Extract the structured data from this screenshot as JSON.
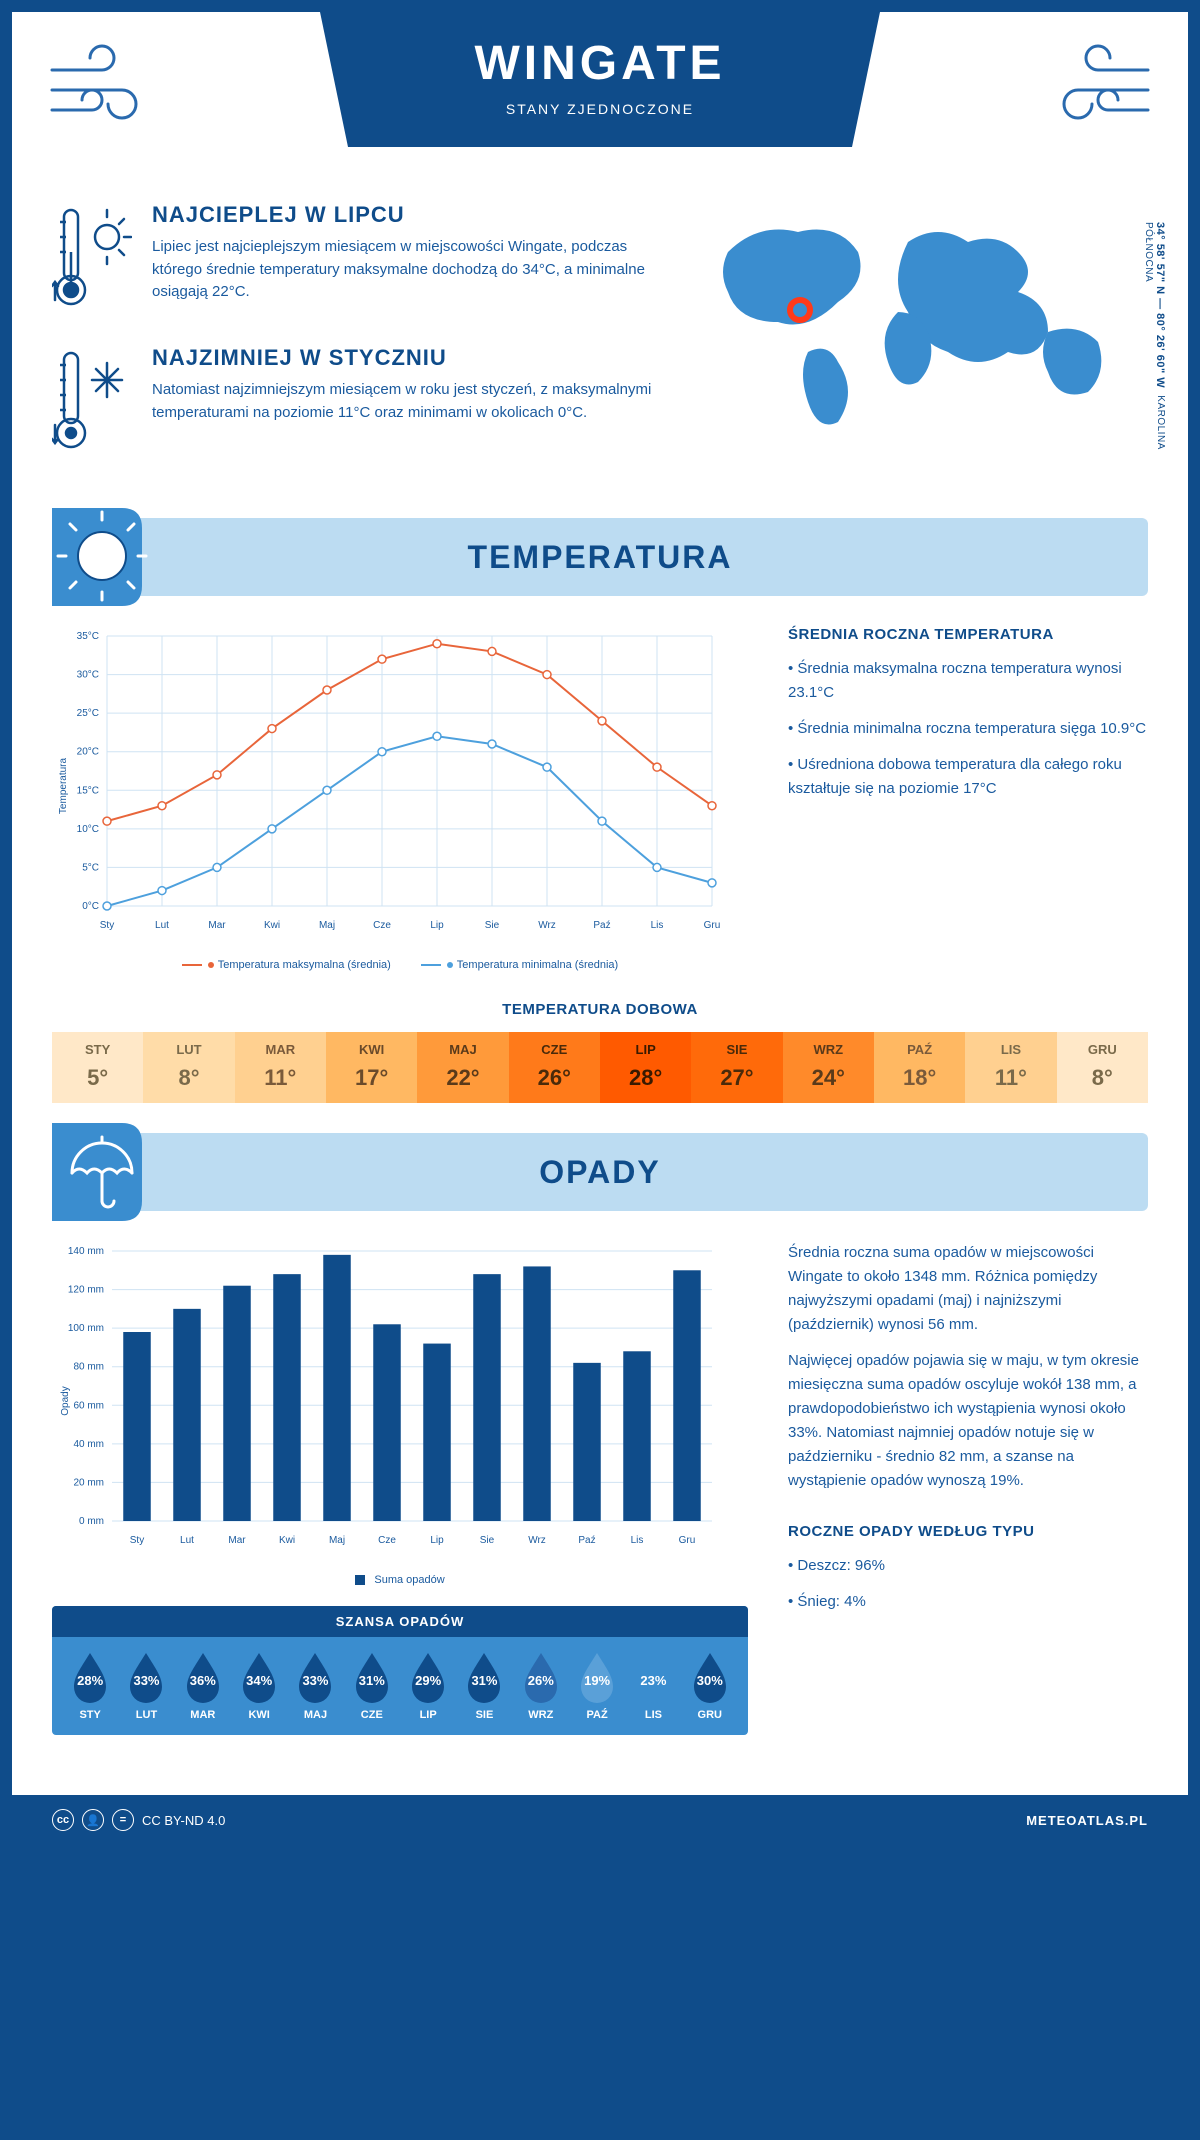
{
  "header": {
    "title": "WINGATE",
    "subtitle": "STANY ZJEDNOCZONE"
  },
  "coords": {
    "line1": "34° 58' 57\" N — 80° 26' 60\" W",
    "line2": "KAROLINA PÓŁNOCNA"
  },
  "facts": {
    "hot": {
      "title": "NAJCIEPLEJ W LIPCU",
      "text": "Lipiec jest najcieplejszym miesiącem w miejscowości Wingate, podczas którego średnie temperatury maksymalne dochodzą do 34°C, a minimalne osiągają 22°C."
    },
    "cold": {
      "title": "NAJZIMNIEJ W STYCZNIU",
      "text": "Natomiast najzimniejszym miesiącem w roku jest styczeń, z maksymalnymi temperaturami na poziomie 11°C oraz minimami w okolicach 0°C."
    }
  },
  "months": [
    "Sty",
    "Lut",
    "Mar",
    "Kwi",
    "Maj",
    "Cze",
    "Lip",
    "Sie",
    "Wrz",
    "Paź",
    "Lis",
    "Gru"
  ],
  "months_upper": [
    "STY",
    "LUT",
    "MAR",
    "KWI",
    "MAJ",
    "CZE",
    "LIP",
    "SIE",
    "WRZ",
    "PAŹ",
    "LIS",
    "GRU"
  ],
  "temp_section": {
    "title": "TEMPERATURA",
    "chart": {
      "type": "line",
      "ylabel": "Temperatura",
      "ylim": [
        0,
        35
      ],
      "yticks": [
        "0°C",
        "5°C",
        "10°C",
        "15°C",
        "20°C",
        "25°C",
        "30°C",
        "35°C"
      ],
      "series": {
        "max": {
          "label": "Temperatura maksymalna (średnia)",
          "color": "#e8653a",
          "values": [
            11,
            13,
            17,
            23,
            28,
            32,
            34,
            33,
            30,
            24,
            18,
            13
          ]
        },
        "min": {
          "label": "Temperatura minimalna (średnia)",
          "color": "#4da0dd",
          "values": [
            0,
            2,
            5,
            10,
            15,
            20,
            22,
            21,
            18,
            11,
            5,
            3
          ]
        }
      },
      "grid_color": "#cfe3f3",
      "background": "#ffffff",
      "line_width": 2,
      "marker": "circle",
      "marker_size": 4
    },
    "annual": {
      "title": "ŚREDNIA ROCZNA TEMPERATURA",
      "b1": "• Średnia maksymalna roczna temperatura wynosi 23.1°C",
      "b2": "• Średnia minimalna roczna temperatura sięga 10.9°C",
      "b3": "• Uśredniona dobowa temperatura dla całego roku kształtuje się na poziomie 17°C"
    },
    "daily": {
      "title": "TEMPERATURA DOBOWA",
      "values": [
        "5°",
        "8°",
        "11°",
        "17°",
        "22°",
        "26°",
        "28°",
        "27°",
        "24°",
        "18°",
        "11°",
        "8°"
      ],
      "bg_colors": [
        "#ffe8c8",
        "#ffdca8",
        "#ffd090",
        "#ffb862",
        "#ff9a3a",
        "#ff7a1a",
        "#ff5a00",
        "#ff6a0a",
        "#ff8a2a",
        "#ffb862",
        "#ffd090",
        "#ffe8c8"
      ],
      "text_colors": [
        "#7a6a4a",
        "#7a6a4a",
        "#7a5a3a",
        "#6a4a2a",
        "#5a3a1a",
        "#4a2a0a",
        "#3a1a00",
        "#4a2a0a",
        "#5a3a1a",
        "#7a5a3a",
        "#7a6a4a",
        "#7a6a4a"
      ]
    }
  },
  "rain_section": {
    "title": "OPADY",
    "chart": {
      "type": "bar",
      "ylabel": "Opady",
      "ylim": [
        0,
        140
      ],
      "yticks": [
        "0 mm",
        "20 mm",
        "40 mm",
        "60 mm",
        "80 mm",
        "100 mm",
        "120 mm",
        "140 mm"
      ],
      "values": [
        98,
        110,
        122,
        128,
        138,
        102,
        92,
        128,
        132,
        82,
        88,
        130
      ],
      "bar_color": "#0f4c8a",
      "grid_color": "#cfe3f3",
      "bar_width": 0.55,
      "legend": "Suma opadów"
    },
    "para1": "Średnia roczna suma opadów w miejscowości Wingate to około 1348 mm. Różnica pomiędzy najwyższymi opadami (maj) i najniższymi (październik) wynosi 56 mm.",
    "para2": "Najwięcej opadów pojawia się w maju, w tym okresie miesięczna suma opadów oscyluje wokół 138 mm, a prawdopodobieństwo ich wystąpienia wynosi około 33%. Natomiast najmniej opadów notuje się w październiku - średnio 82 mm, a szanse na wystąpienie opadów wynoszą 19%.",
    "chance": {
      "title": "SZANSA OPADÓW",
      "values": [
        "28%",
        "33%",
        "36%",
        "34%",
        "33%",
        "31%",
        "29%",
        "31%",
        "26%",
        "19%",
        "23%",
        "30%"
      ],
      "drop_colors": [
        "#0f4c8a",
        "#0f4c8a",
        "#0f4c8a",
        "#0f4c8a",
        "#0f4c8a",
        "#0f4c8a",
        "#0f4c8a",
        "#0f4c8a",
        "#2a6aae",
        "#5aa0d8",
        "#3a8dcf",
        "#0f4c8a"
      ]
    },
    "bytype": {
      "title": "ROCZNE OPADY WEDŁUG TYPU",
      "b1": "• Deszcz: 96%",
      "b2": "• Śnieg: 4%"
    }
  },
  "footer": {
    "license": "CC BY-ND 4.0",
    "site": "METEOATLAS.PL"
  }
}
